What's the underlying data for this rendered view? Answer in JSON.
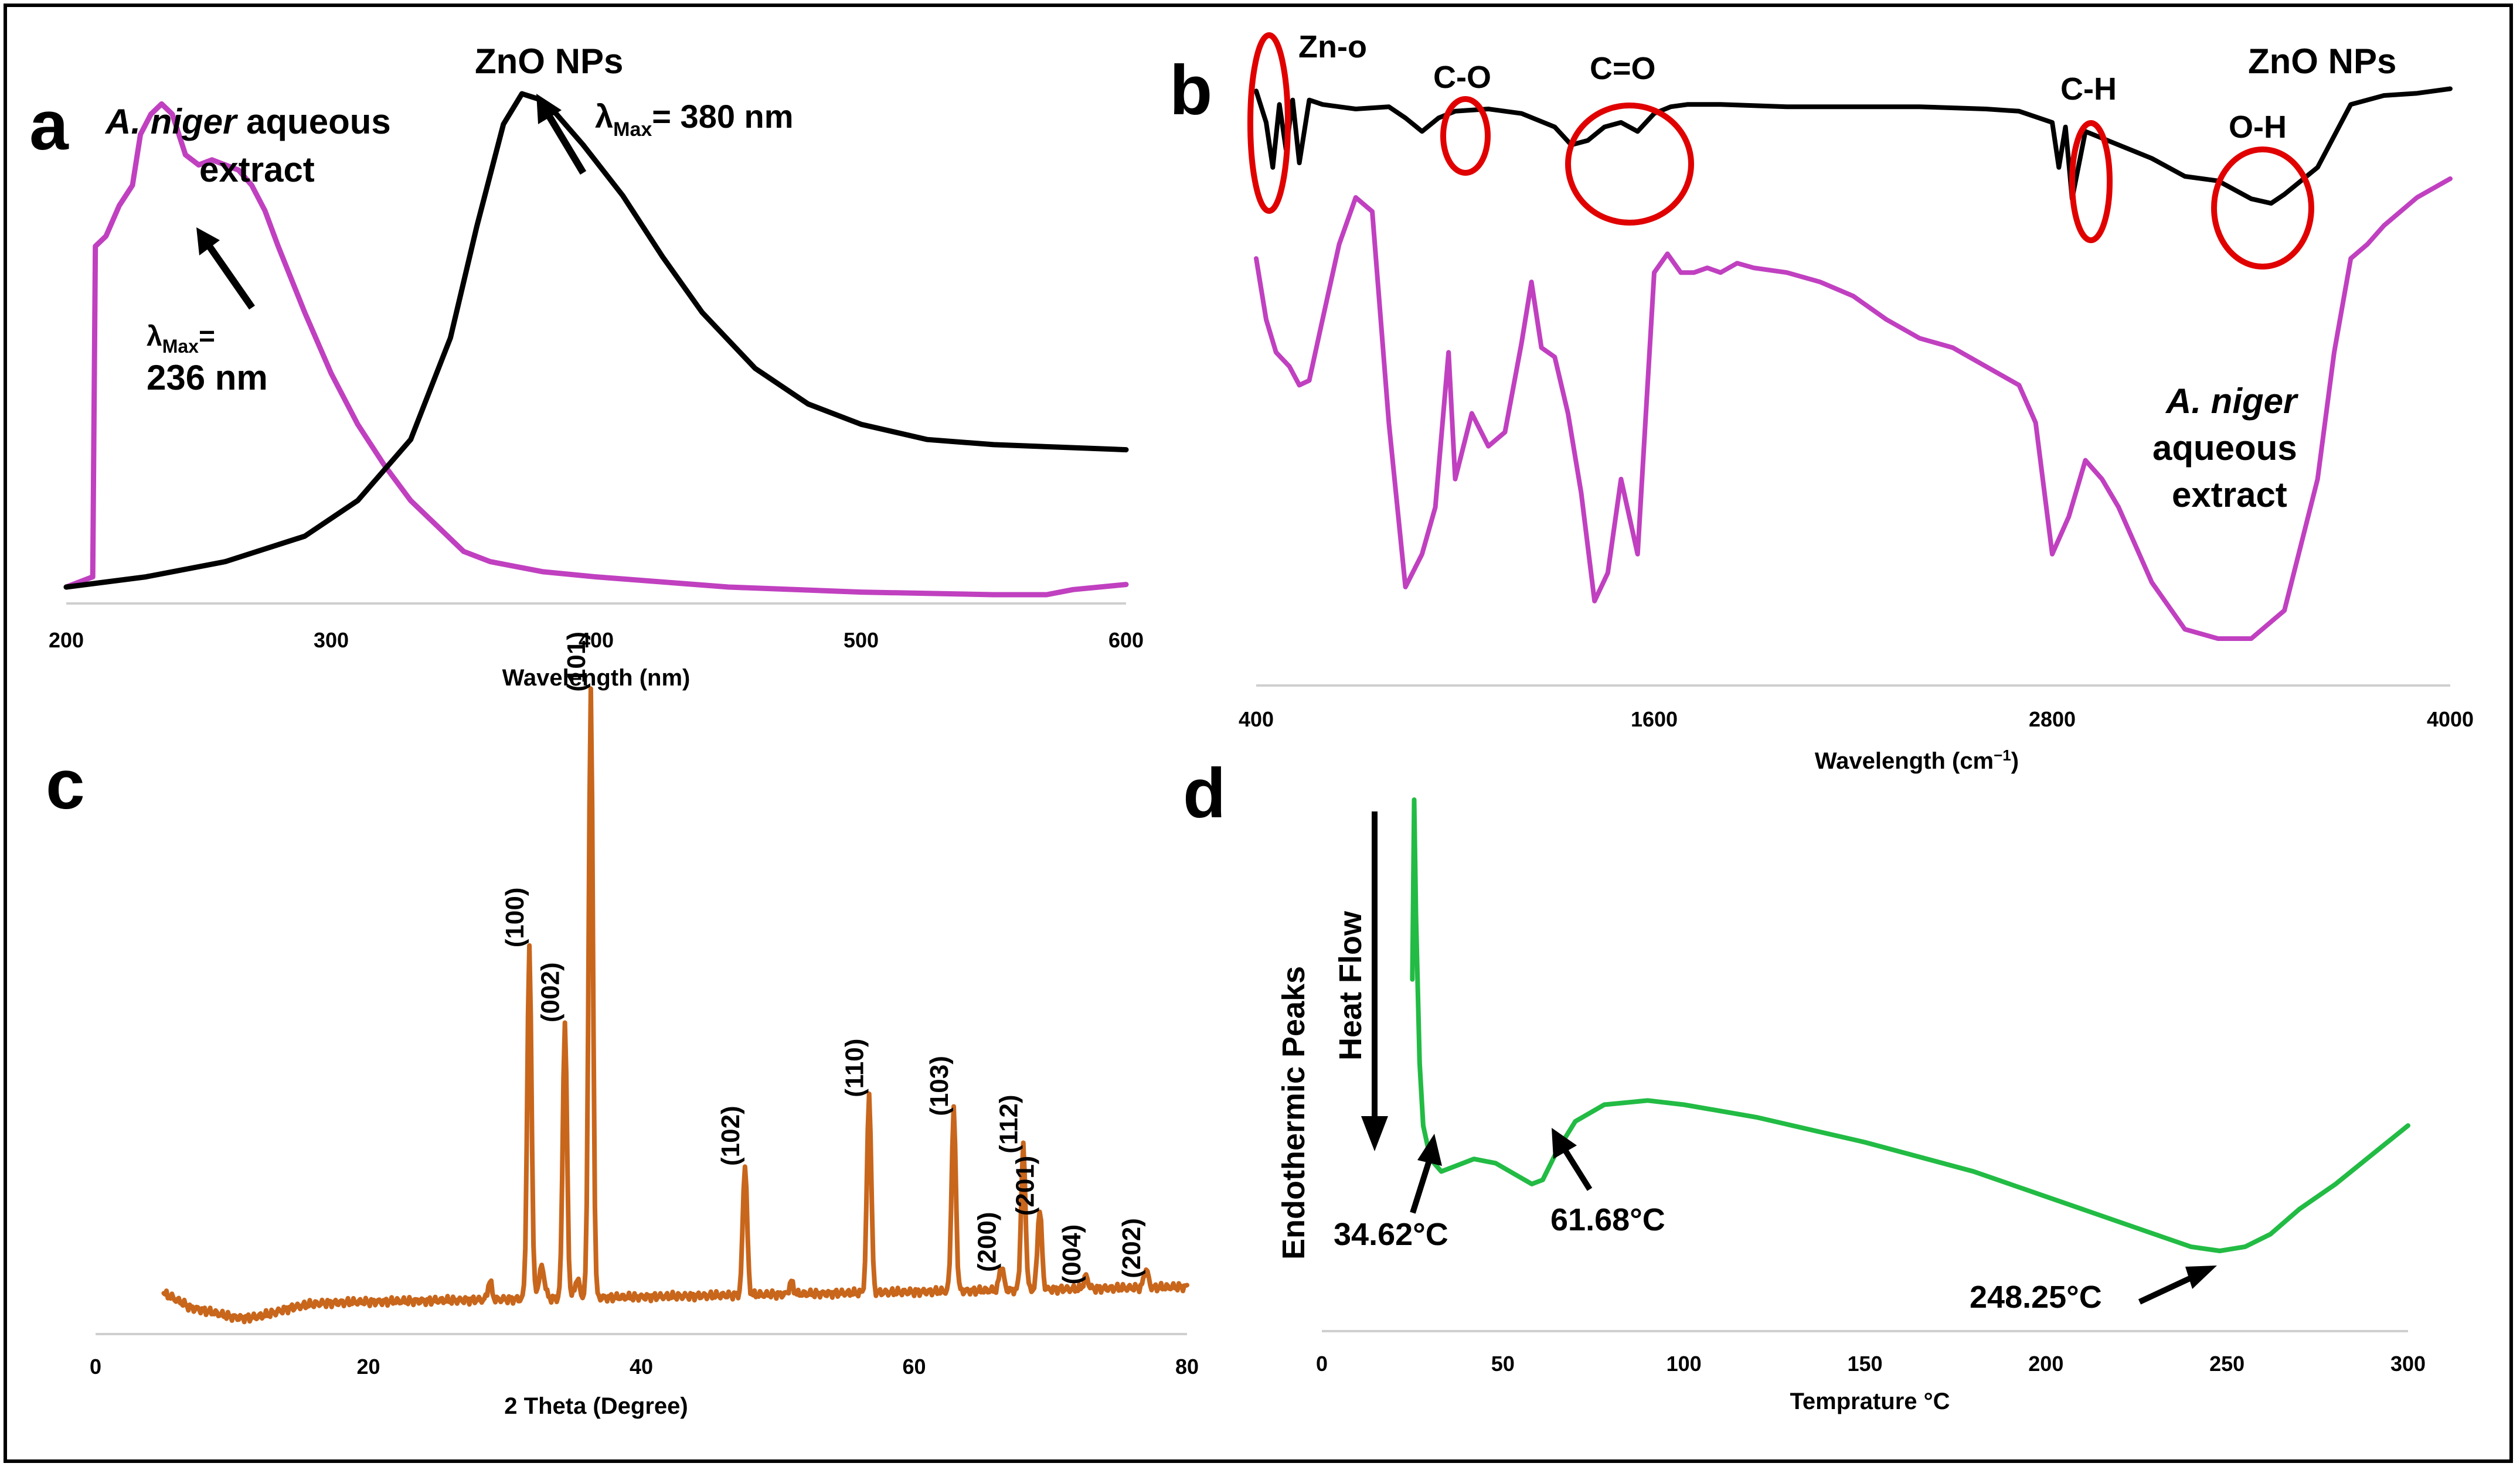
{
  "colors": {
    "extract": "#c040c0",
    "zno": "#000000",
    "xrd": "#c8661c",
    "dsc": "#22bb44",
    "circle": "#e00000"
  },
  "chart_data": [
    {
      "panel": "a",
      "type": "line",
      "xlabel": "Wavelength (nm)",
      "ylabel": "",
      "xlim": [
        200,
        600
      ],
      "xticks": [
        "200",
        "300",
        "400",
        "500",
        "600"
      ],
      "annotations": {
        "extract_name_italic": "A. niger",
        "extract_name_rest": " aqueous",
        "extract_name_line2": "extract",
        "extract_lambda_prefix": "λ",
        "extract_lambda_sub": "Max",
        "extract_lambda_eq": "=",
        "extract_lambda_value": "236 nm",
        "zno_name": "ZnO  NPs",
        "zno_lambda_prefix": "λ",
        "zno_lambda_sub": "Max",
        "zno_lambda_value": "= 380 nm"
      },
      "series": [
        {
          "key": "extract",
          "x": [
            200,
            210,
            211,
            215,
            220,
            225,
            228,
            232,
            236,
            240,
            245,
            250,
            255,
            260,
            265,
            270,
            275,
            280,
            290,
            300,
            310,
            320,
            330,
            340,
            350,
            360,
            380,
            400,
            450,
            500,
            550,
            570,
            580,
            600
          ],
          "y": [
            0.03,
            0.05,
            0.7,
            0.72,
            0.78,
            0.82,
            0.92,
            0.96,
            0.98,
            0.96,
            0.88,
            0.86,
            0.87,
            0.86,
            0.85,
            0.82,
            0.77,
            0.7,
            0.57,
            0.45,
            0.35,
            0.27,
            0.2,
            0.15,
            0.1,
            0.08,
            0.06,
            0.05,
            0.03,
            0.02,
            0.015,
            0.015,
            0.025,
            0.035
          ]
        },
        {
          "key": "zno",
          "x": [
            200,
            230,
            260,
            290,
            310,
            330,
            345,
            355,
            365,
            372,
            378,
            385,
            395,
            410,
            425,
            440,
            460,
            480,
            500,
            525,
            550,
            575,
            600
          ],
          "y": [
            0.03,
            0.05,
            0.08,
            0.13,
            0.2,
            0.32,
            0.52,
            0.74,
            0.94,
            1.0,
            0.99,
            0.96,
            0.9,
            0.8,
            0.68,
            0.57,
            0.46,
            0.39,
            0.35,
            0.32,
            0.31,
            0.305,
            0.3
          ]
        }
      ]
    },
    {
      "panel": "b",
      "type": "line",
      "xlabel": "Wavelength (cm",
      "xlabel_sup": "−1",
      "xlabel_close": ")",
      "xlim": [
        400,
        4000
      ],
      "xticks": [
        "400",
        "1600",
        "2800",
        "4000"
      ],
      "annotations": {
        "zno_name": "ZnO  NPs",
        "extract_name_italic": "A. niger",
        "extract_name_line2": "aqueous",
        "extract_name_line3": "extract",
        "bands": [
          "Zn-o",
          "C-O",
          "C=O",
          "C-H",
          "O-H"
        ]
      },
      "series": [
        {
          "key": "zno",
          "x": [
            400,
            430,
            450,
            470,
            490,
            510,
            530,
            560,
            600,
            700,
            800,
            850,
            900,
            950,
            1000,
            1100,
            1200,
            1300,
            1350,
            1400,
            1450,
            1500,
            1550,
            1600,
            1650,
            1700,
            1800,
            2000,
            2200,
            2400,
            2600,
            2700,
            2800,
            2820,
            2840,
            2860,
            2900,
            3000,
            3100,
            3200,
            3300,
            3400,
            3460,
            3500,
            3600,
            3700,
            3800,
            3900,
            4000
          ],
          "y": [
            0.96,
            0.82,
            0.62,
            0.9,
            0.7,
            0.92,
            0.64,
            0.92,
            0.9,
            0.88,
            0.89,
            0.84,
            0.78,
            0.84,
            0.87,
            0.88,
            0.86,
            0.8,
            0.72,
            0.74,
            0.8,
            0.82,
            0.78,
            0.86,
            0.89,
            0.9,
            0.9,
            0.89,
            0.89,
            0.89,
            0.88,
            0.87,
            0.82,
            0.62,
            0.8,
            0.48,
            0.78,
            0.72,
            0.66,
            0.58,
            0.56,
            0.48,
            0.46,
            0.5,
            0.62,
            0.9,
            0.94,
            0.95,
            0.97
          ]
        },
        {
          "key": "extract",
          "x": [
            400,
            430,
            460,
            500,
            530,
            560,
            600,
            650,
            700,
            750,
            800,
            850,
            900,
            940,
            980,
            1000,
            1050,
            1100,
            1150,
            1200,
            1230,
            1260,
            1300,
            1340,
            1380,
            1420,
            1460,
            1500,
            1550,
            1600,
            1640,
            1680,
            1720,
            1760,
            1800,
            1850,
            1900,
            2000,
            2100,
            2200,
            2300,
            2400,
            2500,
            2600,
            2700,
            2750,
            2800,
            2850,
            2900,
            2950,
            3000,
            3050,
            3100,
            3200,
            3300,
            3400,
            3500,
            3600,
            3650,
            3700,
            3750,
            3800,
            3850,
            3900,
            4000
          ],
          "y": [
            0.75,
            0.62,
            0.55,
            0.52,
            0.48,
            0.49,
            0.62,
            0.78,
            0.88,
            0.85,
            0.4,
            0.05,
            0.12,
            0.22,
            0.55,
            0.28,
            0.42,
            0.35,
            0.38,
            0.57,
            0.7,
            0.56,
            0.54,
            0.42,
            0.25,
            0.02,
            0.08,
            0.28,
            0.12,
            0.72,
            0.76,
            0.72,
            0.72,
            0.73,
            0.72,
            0.74,
            0.73,
            0.72,
            0.7,
            0.67,
            0.62,
            0.58,
            0.56,
            0.52,
            0.48,
            0.4,
            0.12,
            0.2,
            0.32,
            0.28,
            0.22,
            0.14,
            0.06,
            -0.04,
            -0.06,
            -0.06,
            0.0,
            0.28,
            0.55,
            0.75,
            0.78,
            0.82,
            0.85,
            0.88,
            0.92
          ]
        }
      ]
    },
    {
      "panel": "c",
      "type": "line",
      "xlabel": "2 Theta (Degree)",
      "xlim": [
        0,
        80
      ],
      "xticks": [
        "0",
        "20",
        "40",
        "60",
        "80"
      ],
      "peaks": [
        {
          "x": 31.8,
          "h": 0.56,
          "label": "(100)"
        },
        {
          "x": 34.4,
          "h": 0.44,
          "label": "(002)"
        },
        {
          "x": 36.3,
          "h": 0.97,
          "label": "(101)"
        },
        {
          "x": 47.6,
          "h": 0.21,
          "label": "(102)"
        },
        {
          "x": 56.7,
          "h": 0.32,
          "label": "(110)"
        },
        {
          "x": 62.9,
          "h": 0.29,
          "label": "(103)"
        },
        {
          "x": 66.4,
          "h": 0.04,
          "label": "(200)"
        },
        {
          "x": 68.0,
          "h": 0.23,
          "label": "(112)"
        },
        {
          "x": 69.2,
          "h": 0.13,
          "label": "(201)"
        },
        {
          "x": 72.6,
          "h": 0.02,
          "label": "(004)"
        },
        {
          "x": 77.0,
          "h": 0.03,
          "label": "(202)"
        }
      ]
    },
    {
      "panel": "d",
      "type": "line",
      "xlabel": "Temprature °C",
      "ylabel_line1": "Endothermic Peaks",
      "ylabel_line2": "Heat Flow",
      "xlim": [
        0,
        300
      ],
      "xticks": [
        "0",
        "50",
        "100",
        "150",
        "200",
        "250",
        "300"
      ],
      "annotations": [
        "34.62°C",
        "61.68°C",
        "248.25°C"
      ],
      "series": [
        {
          "key": "dsc",
          "x": [
            25,
            25.5,
            26,
            27,
            28,
            30,
            33,
            36,
            42,
            48,
            54,
            58,
            61,
            65,
            70,
            78,
            90,
            100,
            120,
            150,
            180,
            210,
            230,
            240,
            248,
            255,
            262,
            270,
            280,
            290,
            300
          ],
          "y": [
            0.55,
            0.98,
            0.7,
            0.35,
            0.2,
            0.12,
            0.09,
            0.1,
            0.12,
            0.11,
            0.08,
            0.06,
            0.07,
            0.14,
            0.21,
            0.25,
            0.26,
            0.25,
            0.22,
            0.16,
            0.09,
            0.0,
            -0.06,
            -0.09,
            -0.1,
            -0.09,
            -0.06,
            -0.0,
            0.06,
            0.13,
            0.2
          ]
        }
      ]
    }
  ]
}
